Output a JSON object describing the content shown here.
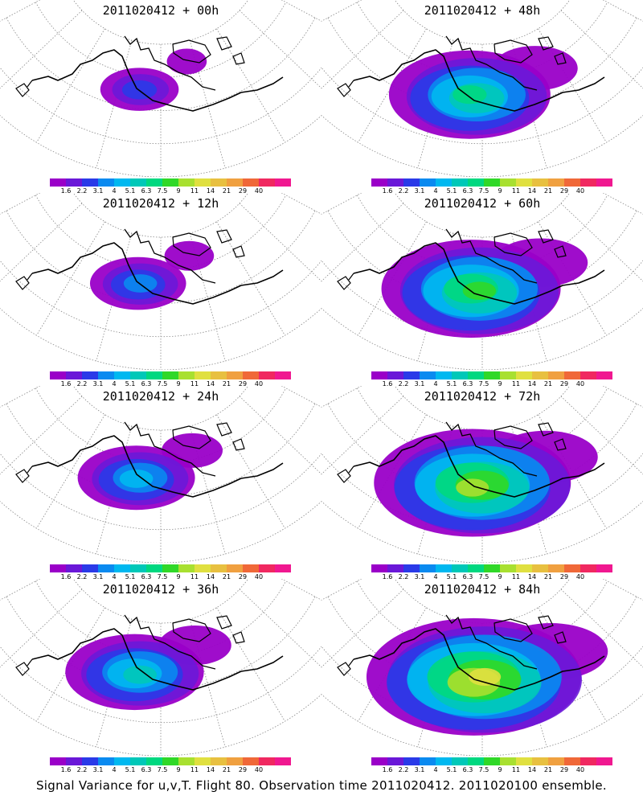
{
  "panels": [
    {
      "title": "2011020412 + 00h",
      "level": 0.08
    },
    {
      "title": "2011020412 + 48h",
      "level": 0.55
    },
    {
      "title": "2011020412 + 12h",
      "level": 0.18
    },
    {
      "title": "2011020412 + 60h",
      "level": 0.65
    },
    {
      "title": "2011020412 + 24h",
      "level": 0.3
    },
    {
      "title": "2011020412 + 72h",
      "level": 0.75
    },
    {
      "title": "2011020412 + 36h",
      "level": 0.42
    },
    {
      "title": "2011020412 + 84h",
      "level": 0.85
    }
  ],
  "colorbar": {
    "labels": [
      "1.6",
      "2.2",
      "3.1",
      "4",
      "5.1",
      "6.3",
      "7.5",
      "9",
      "11",
      "14",
      "21",
      "29",
      "40"
    ],
    "colors": [
      "#9a00c8",
      "#6a18d8",
      "#2a3ae8",
      "#0a8af0",
      "#00b8f0",
      "#00c8b8",
      "#00d880",
      "#30d828",
      "#a8e030",
      "#e0e040",
      "#e8c040",
      "#f0a040",
      "#f06838",
      "#f02860",
      "#f01890"
    ]
  },
  "caption": "Signal Variance for u,v,T. Flight 80. Observation time 2011020412. 2011020100 ensemble."
}
